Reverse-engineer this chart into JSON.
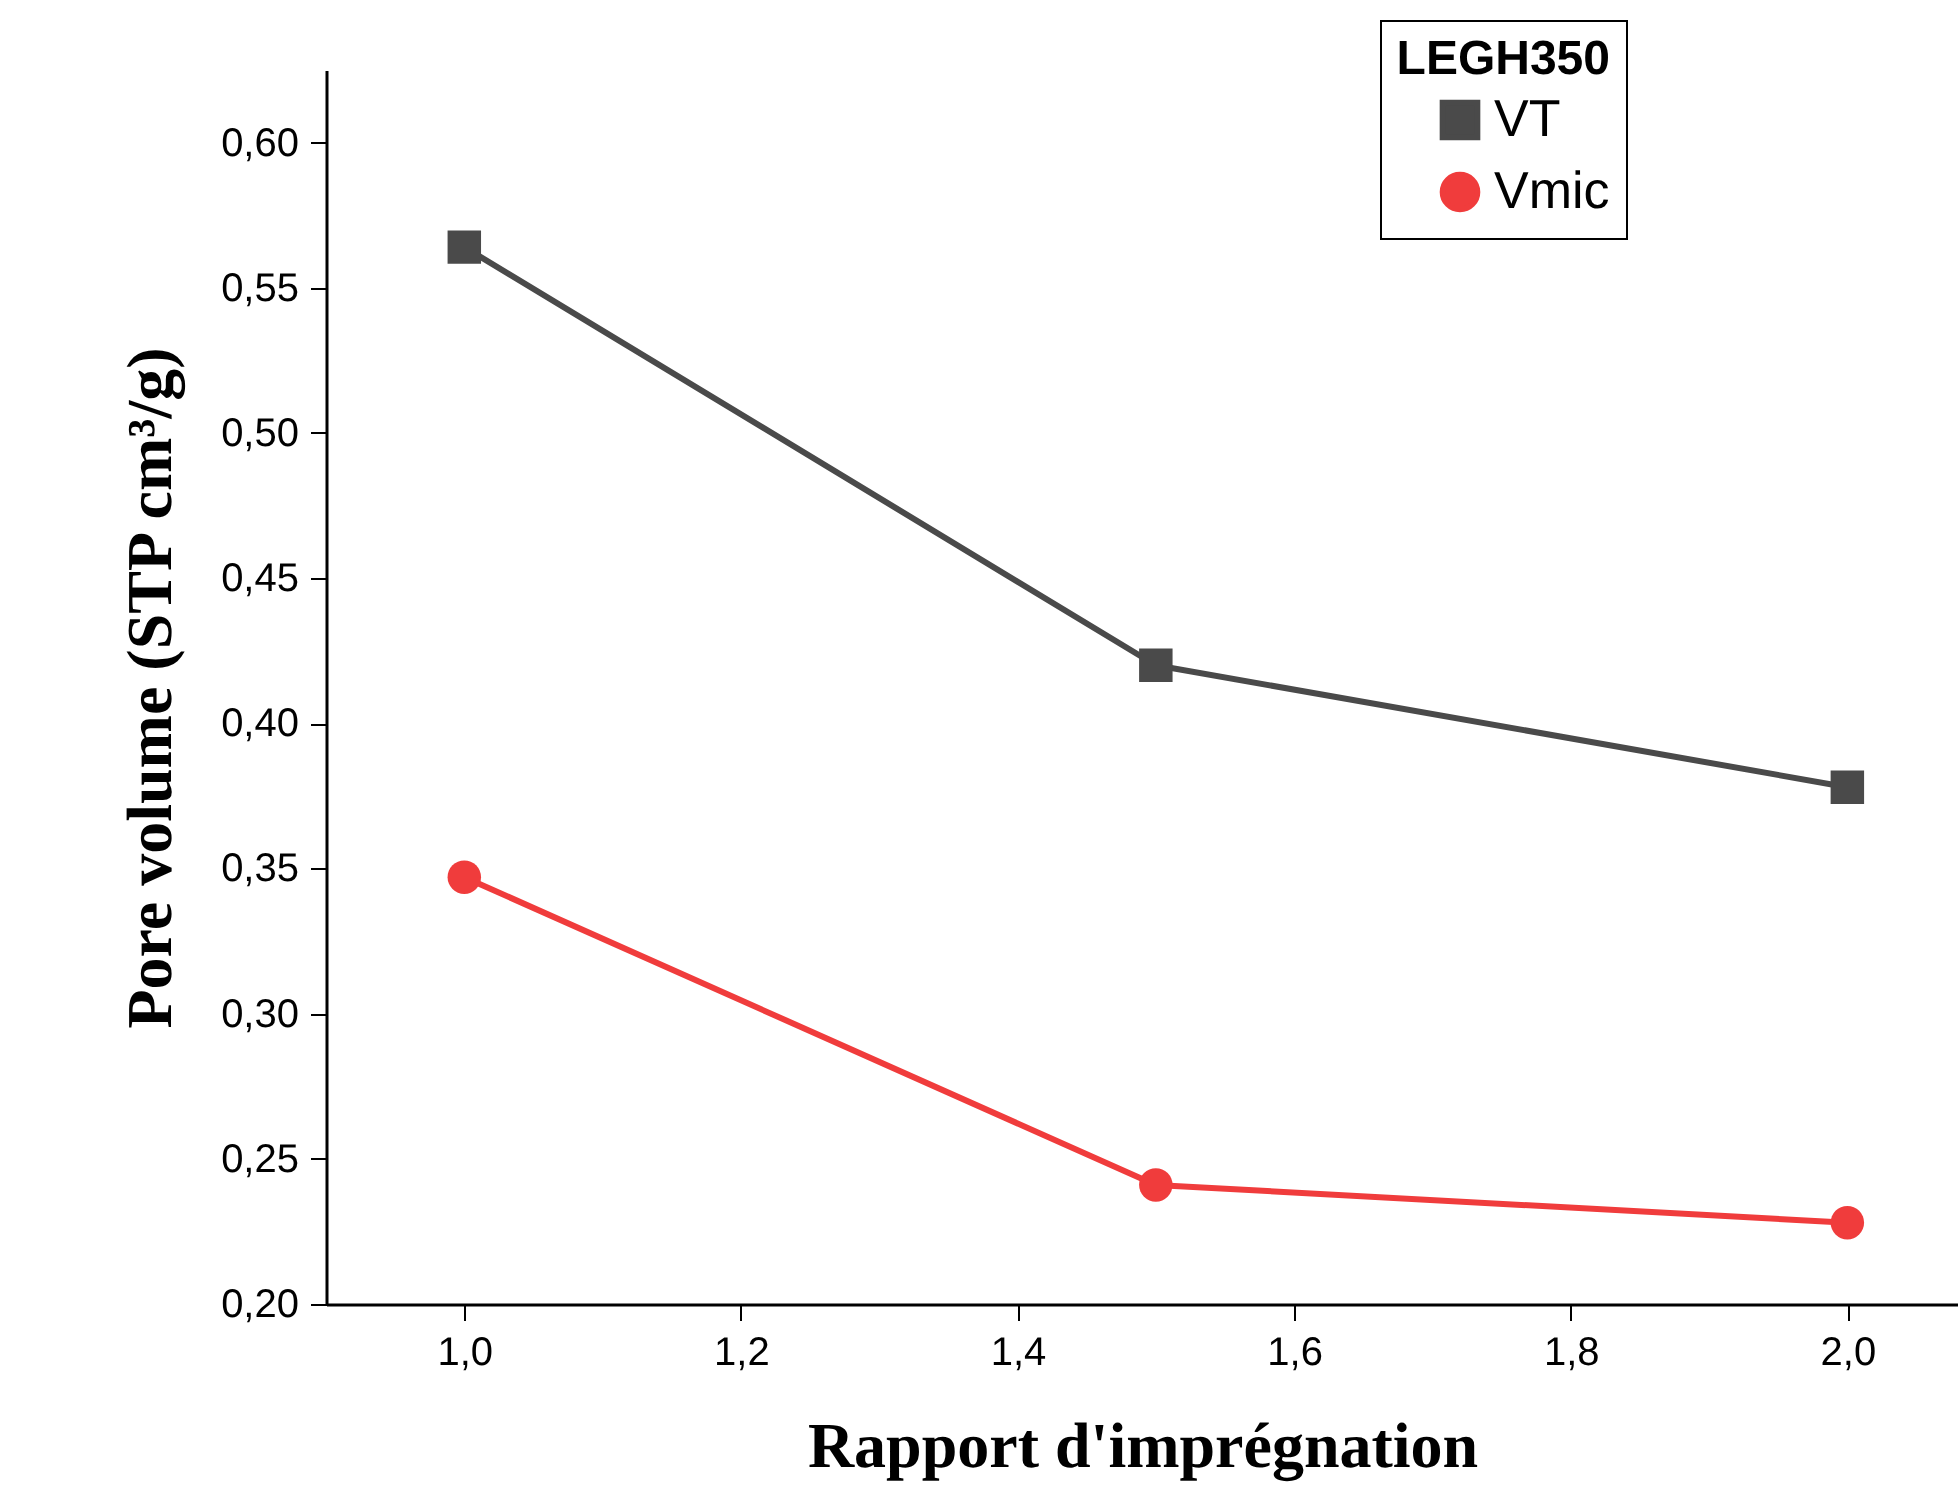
{
  "chart_data": {
    "type": "line",
    "xlabel": "Rapport d'imprégnation",
    "ylabel": "Pore volume (STP cm³/g)",
    "legend_title": "LEGH350",
    "x": [
      1.0,
      1.5,
      2.0
    ],
    "series": [
      {
        "name": "VT",
        "color": "#4a4a4a",
        "marker": "square",
        "values": [
          0.564,
          0.42,
          0.378
        ]
      },
      {
        "name": "Vmic",
        "color": "#f03c3c",
        "marker": "circle",
        "values": [
          0.347,
          0.241,
          0.228
        ]
      }
    ],
    "xlim": [
      0.9,
      2.08
    ],
    "xticks": [
      {
        "value": 1.0,
        "label": "1,0"
      },
      {
        "value": 1.2,
        "label": "1,2"
      },
      {
        "value": 1.4,
        "label": "1,4"
      },
      {
        "value": 1.6,
        "label": "1,6"
      },
      {
        "value": 1.8,
        "label": "1,8"
      },
      {
        "value": 2.0,
        "label": "2,0"
      }
    ],
    "ylim": [
      0.2,
      0.625
    ],
    "yticks": [
      {
        "value": 0.2,
        "label": "0,20"
      },
      {
        "value": 0.25,
        "label": "0,25"
      },
      {
        "value": 0.3,
        "label": "0,30"
      },
      {
        "value": 0.35,
        "label": "0,35"
      },
      {
        "value": 0.4,
        "label": "0,40"
      },
      {
        "value": 0.45,
        "label": "0,45"
      },
      {
        "value": 0.5,
        "label": "0,50"
      },
      {
        "value": 0.55,
        "label": "0,55"
      },
      {
        "value": 0.6,
        "label": "0,60"
      }
    ],
    "grid": false,
    "legend": "top right",
    "line_style": "solid"
  }
}
